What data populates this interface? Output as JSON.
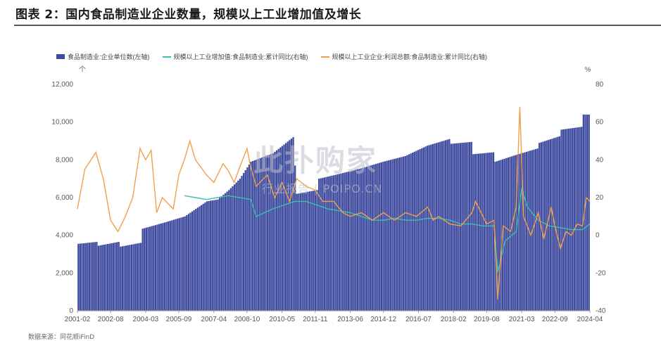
{
  "header": {
    "title": "图表 2：国内食品制造业企业数量，规模以上工业增加值及增长"
  },
  "watermark": {
    "main": "此扑购家",
    "sub": "行业报告 | POIPO.CN"
  },
  "source": "数据来源：同花顺iFinD",
  "colors": {
    "bars": "#3f4b9f",
    "teal": "#3bbfb0",
    "orange": "#f0a04b"
  },
  "chart_data": {
    "type": "bar+line",
    "left_axis": {
      "unit": "个",
      "ylim": [
        0,
        12000
      ],
      "ticks": [
        "0",
        "2,000",
        "4,000",
        "6,000",
        "8,000",
        "10,000",
        "12,000"
      ]
    },
    "right_axis": {
      "unit": "%",
      "ylim": [
        -40,
        80
      ],
      "ticks": [
        "-40",
        "-20",
        "0",
        "20",
        "40",
        "60",
        "80"
      ]
    },
    "x_tick_labels": [
      "2001-02",
      "2002-08",
      "2004-03",
      "2005-09",
      "2007-04",
      "2008-10",
      "2010-05",
      "2011-11",
      "2013-06",
      "2014-12",
      "2016-07",
      "2018-02",
      "2019-08",
      "2021-03",
      "2022-09",
      "2024-04"
    ],
    "x_range": [
      "2001-02",
      "2024-04"
    ],
    "legend": [
      {
        "name": "食品制造业:企业单位数(左轴)",
        "kind": "bar",
        "color": "#3f4b9f"
      },
      {
        "name": "规模以上工业增加值:食品制造业:累计同比(右轴)",
        "kind": "line",
        "color": "#3bbfb0"
      },
      {
        "name": "规模以上工业企业:利润总额:食品制造业:累计同比(右轴)",
        "kind": "line",
        "color": "#f0a04b"
      }
    ],
    "bar_series_anchors": [
      [
        "2001-02",
        3550
      ],
      [
        "2001-12",
        3650
      ],
      [
        "2002-01",
        3450
      ],
      [
        "2002-12",
        3650
      ],
      [
        "2003-01",
        3400
      ],
      [
        "2003-12",
        3600
      ],
      [
        "2004-01",
        4350
      ],
      [
        "2004-12",
        4650
      ],
      [
        "2005-12",
        5000
      ],
      [
        "2006-12",
        5800
      ],
      [
        "2007-06",
        5900
      ],
      [
        "2007-12",
        6400
      ],
      [
        "2008-06",
        7000
      ],
      [
        "2008-12",
        7900
      ],
      [
        "2009-12",
        8350
      ],
      [
        "2010-11",
        9200
      ],
      [
        "2011-01",
        6200
      ],
      [
        "2011-12",
        6400
      ],
      [
        "2012-01",
        7000
      ],
      [
        "2012-12",
        7250
      ],
      [
        "2013-12",
        7550
      ],
      [
        "2014-12",
        7900
      ],
      [
        "2015-12",
        8200
      ],
      [
        "2016-12",
        8750
      ],
      [
        "2017-12",
        9100
      ],
      [
        "2018-01",
        8850
      ],
      [
        "2018-12",
        8950
      ],
      [
        "2019-01",
        8300
      ],
      [
        "2019-12",
        8400
      ],
      [
        "2020-01",
        7900
      ],
      [
        "2020-12",
        8250
      ],
      [
        "2021-12",
        8600
      ],
      [
        "2022-01",
        8900
      ],
      [
        "2022-12",
        9250
      ],
      [
        "2023-01",
        9600
      ],
      [
        "2023-12",
        9750
      ],
      [
        "2024-01",
        10400
      ],
      [
        "2024-04",
        10400
      ]
    ],
    "teal_series": [
      [
        "2005-12",
        21
      ],
      [
        "2006-06",
        20
      ],
      [
        "2006-12",
        19
      ],
      [
        "2007-06",
        20
      ],
      [
        "2007-12",
        21
      ],
      [
        "2008-06",
        20
      ],
      [
        "2008-12",
        19
      ],
      [
        "2009-03",
        10
      ],
      [
        "2009-12",
        14
      ],
      [
        "2010-06",
        16
      ],
      [
        "2010-12",
        18
      ],
      [
        "2011-06",
        18
      ],
      [
        "2011-12",
        16
      ],
      [
        "2012-06",
        14
      ],
      [
        "2012-12",
        13
      ],
      [
        "2013-06",
        12
      ],
      [
        "2013-12",
        10
      ],
      [
        "2014-06",
        8
      ],
      [
        "2014-12",
        8
      ],
      [
        "2015-06",
        9
      ],
      [
        "2015-12",
        8
      ],
      [
        "2016-06",
        8
      ],
      [
        "2016-12",
        9
      ],
      [
        "2017-06",
        9
      ],
      [
        "2017-12",
        8
      ],
      [
        "2018-06",
        6
      ],
      [
        "2018-12",
        6
      ],
      [
        "2019-06",
        5
      ],
      [
        "2019-12",
        5
      ],
      [
        "2020-02",
        -20
      ],
      [
        "2020-06",
        -3
      ],
      [
        "2020-12",
        2
      ],
      [
        "2021-03",
        25
      ],
      [
        "2021-06",
        15
      ],
      [
        "2021-12",
        8
      ],
      [
        "2022-06",
        5
      ],
      [
        "2022-12",
        4
      ],
      [
        "2023-06",
        3
      ],
      [
        "2023-12",
        3
      ],
      [
        "2024-04",
        6
      ]
    ],
    "orange_series": [
      [
        "2001-02",
        14
      ],
      [
        "2001-06",
        35
      ],
      [
        "2001-12",
        44
      ],
      [
        "2002-04",
        30
      ],
      [
        "2002-08",
        8
      ],
      [
        "2002-12",
        2
      ],
      [
        "2003-04",
        10
      ],
      [
        "2003-08",
        20
      ],
      [
        "2003-12",
        46
      ],
      [
        "2004-03",
        40
      ],
      [
        "2004-06",
        45
      ],
      [
        "2004-09",
        12
      ],
      [
        "2004-12",
        20
      ],
      [
        "2005-06",
        14
      ],
      [
        "2005-09",
        32
      ],
      [
        "2005-12",
        40
      ],
      [
        "2006-03",
        50
      ],
      [
        "2006-06",
        40
      ],
      [
        "2006-12",
        32
      ],
      [
        "2007-04",
        28
      ],
      [
        "2007-09",
        38
      ],
      [
        "2007-12",
        34
      ],
      [
        "2008-03",
        28
      ],
      [
        "2008-06",
        36
      ],
      [
        "2008-10",
        46
      ],
      [
        "2008-12",
        36
      ],
      [
        "2009-03",
        26
      ],
      [
        "2009-09",
        32
      ],
      [
        "2010-01",
        20
      ],
      [
        "2010-05",
        28
      ],
      [
        "2010-09",
        18
      ],
      [
        "2011-01",
        30
      ],
      [
        "2011-06",
        26
      ],
      [
        "2011-11",
        24
      ],
      [
        "2012-03",
        18
      ],
      [
        "2012-09",
        18
      ],
      [
        "2013-02",
        12
      ],
      [
        "2013-06",
        10
      ],
      [
        "2013-12",
        12
      ],
      [
        "2014-06",
        8
      ],
      [
        "2014-12",
        12
      ],
      [
        "2015-06",
        8
      ],
      [
        "2015-12",
        12
      ],
      [
        "2016-06",
        10
      ],
      [
        "2016-12",
        15
      ],
      [
        "2017-03",
        8
      ],
      [
        "2017-06",
        10
      ],
      [
        "2017-12",
        6
      ],
      [
        "2018-06",
        5
      ],
      [
        "2018-12",
        12
      ],
      [
        "2019-02",
        18
      ],
      [
        "2019-06",
        10
      ],
      [
        "2019-08",
        6
      ],
      [
        "2019-12",
        8
      ],
      [
        "2020-02",
        -34
      ],
      [
        "2020-05",
        5
      ],
      [
        "2020-09",
        2
      ],
      [
        "2020-12",
        15
      ],
      [
        "2021-02",
        68
      ],
      [
        "2021-04",
        10
      ],
      [
        "2021-08",
        0
      ],
      [
        "2021-12",
        12
      ],
      [
        "2022-03",
        -2
      ],
      [
        "2022-07",
        15
      ],
      [
        "2022-09",
        5
      ],
      [
        "2022-12",
        -7
      ],
      [
        "2023-03",
        2
      ],
      [
        "2023-06",
        0
      ],
      [
        "2023-09",
        6
      ],
      [
        "2023-12",
        5
      ],
      [
        "2024-02",
        20
      ],
      [
        "2024-04",
        18
      ]
    ]
  }
}
